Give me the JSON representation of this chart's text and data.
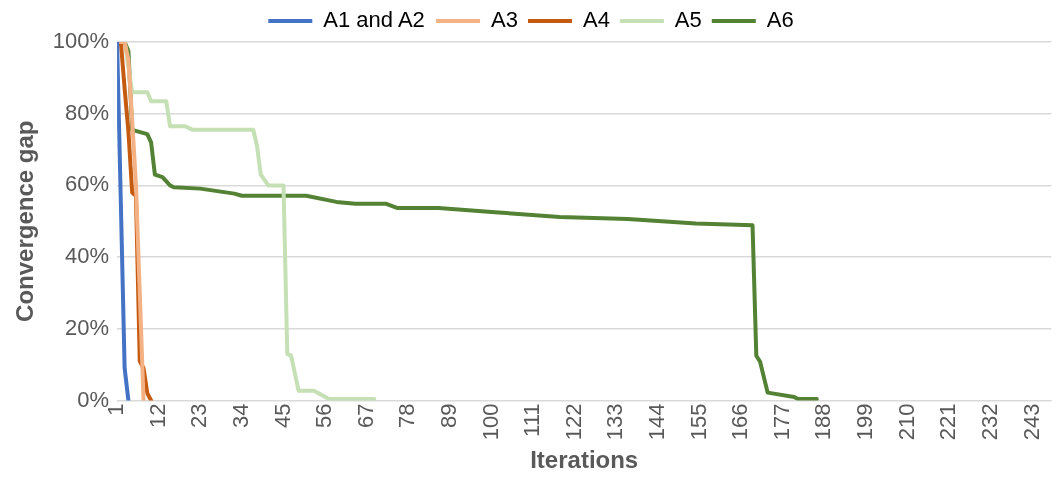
{
  "chart_data": {
    "type": "line",
    "xlabel": "Iterations",
    "ylabel": "Convergence gap",
    "xlim": [
      1,
      248
    ],
    "xticks": [
      1,
      12,
      23,
      34,
      45,
      56,
      67,
      78,
      89,
      100,
      111,
      122,
      133,
      144,
      155,
      166,
      177,
      188,
      199,
      210,
      221,
      232,
      243
    ],
    "ylim": [
      0,
      100
    ],
    "yticks": [
      {
        "value": 0,
        "label": "0%"
      },
      {
        "value": 20,
        "label": "20%"
      },
      {
        "value": 40,
        "label": "40%"
      },
      {
        "value": 60,
        "label": "60%"
      },
      {
        "value": 80,
        "label": "80%"
      },
      {
        "value": 100,
        "label": "100%"
      }
    ],
    "grid": "y",
    "legend": "top",
    "marker": "none",
    "line_style": "solid",
    "series": [
      {
        "name": "A1 and A2",
        "color": "#4472c4",
        "x": [
          1,
          2,
          3,
          4
        ],
        "values": [
          100,
          55,
          9,
          0
        ]
      },
      {
        "name": "A3",
        "color": "#f4b183",
        "x": [
          1,
          2,
          3,
          4,
          5,
          6,
          7,
          8
        ],
        "values": [
          100,
          100,
          100,
          95,
          78,
          60,
          30,
          0
        ]
      },
      {
        "name": "A4",
        "color": "#c55a11",
        "x": [
          1,
          2,
          3,
          4,
          5,
          6,
          7,
          8,
          9,
          10
        ],
        "values": [
          100,
          100,
          87,
          75,
          58,
          57,
          11,
          9,
          2,
          0
        ]
      },
      {
        "name": "A5",
        "color": "#c5e0b4",
        "x": [
          1,
          3,
          5,
          9,
          10,
          14,
          15,
          19,
          21,
          37,
          38,
          39,
          41,
          45,
          46,
          47,
          49,
          53,
          55,
          57,
          69
        ],
        "values": [
          100,
          100,
          86,
          86,
          83.5,
          83.5,
          76.5,
          76.5,
          75.5,
          75.5,
          71,
          63,
          60,
          60,
          13,
          12.5,
          2.7,
          2.7,
          1.6,
          0.4,
          0.4
        ]
      },
      {
        "name": "A6",
        "color": "#548235",
        "x": [
          1,
          3,
          4,
          5,
          9,
          10,
          11,
          13,
          15,
          16,
          23,
          32,
          34,
          51,
          59,
          64,
          72,
          75,
          86,
          100,
          118,
          136,
          154,
          169,
          170,
          171,
          173,
          180,
          181,
          186
        ],
        "values": [
          100,
          100,
          97.5,
          75.5,
          74.3,
          72,
          63,
          62.3,
          60,
          59.5,
          59.1,
          57.7,
          57.1,
          57.1,
          55.4,
          54.9,
          54.9,
          53.7,
          53.7,
          52.6,
          51.2,
          50.6,
          49.4,
          48.9,
          12.5,
          10.8,
          2.2,
          1,
          0.4,
          0.4
        ]
      }
    ]
  }
}
